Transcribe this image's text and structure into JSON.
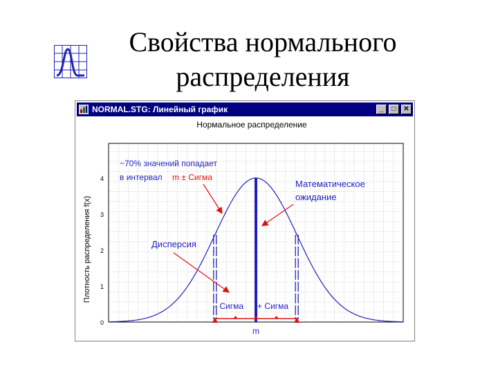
{
  "slide": {
    "title_line1": "Свойства нормального",
    "title_line2": "распределения"
  },
  "window": {
    "title": "NORMAL.STG: Линейный график",
    "minimize_glyph": "_",
    "maximize_glyph": "□",
    "close_glyph": "✕"
  },
  "chart_data": {
    "type": "line",
    "title": "Нормальное распределение",
    "xlabel": "m",
    "ylabel": "Плотность распределения f(x)",
    "ylim": [
      0,
      4
    ],
    "yticks": [
      "0",
      "1",
      "2",
      "3",
      "4"
    ],
    "grid": true,
    "curve": {
      "mean": 0,
      "sigma": 1,
      "peak": 4,
      "xlim": [
        -3.6,
        3.6
      ]
    },
    "sigma_lines": [
      -1,
      1
    ],
    "annotations": {
      "interval_line1": "~70% значений попадает",
      "interval_line2_prefix": "в интервал",
      "interval_line2_red": "m ± Сигма",
      "expectation_line1": "Математическое",
      "expectation_line2": "ожидание",
      "dispersion": "Дисперсия",
      "minus_sigma": "- Сигма",
      "plus_sigma": "+ Сигма"
    },
    "colors": {
      "curve": "#1f1fbf",
      "text_blue": "#1f1fbf",
      "arrows": "#e01010",
      "grid": "#a0a0a0"
    }
  }
}
